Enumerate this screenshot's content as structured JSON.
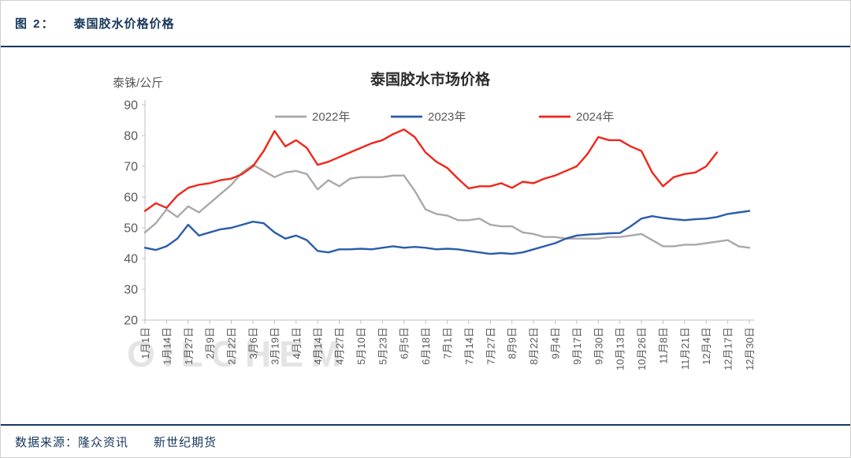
{
  "header": {
    "figure_label": "图 2：",
    "title": "泰国胶水价格价格"
  },
  "footer": {
    "text": "数据来源：隆众资讯　　新世纪期货"
  },
  "watermark": "OILCHEM",
  "theme": {
    "accent_navy": "#17375d",
    "axis_text": "#595959",
    "axis_line": "#bfbfbf",
    "watermark": "#e4e4e4"
  },
  "chart_data": {
    "type": "line",
    "title": "泰国胶水市场价格",
    "y_unit": "泰铢/公斤",
    "ylim": [
      20,
      90
    ],
    "y_ticks": [
      20,
      30,
      40,
      50,
      60,
      70,
      80,
      90
    ],
    "grid": false,
    "legend_position": "top",
    "x_tick_labels": [
      "1月1日",
      "1月14日",
      "1月27日",
      "2月9日",
      "2月22日",
      "3月6日",
      "3月19日",
      "4月1日",
      "4月14日",
      "4月27日",
      "5月10日",
      "5月23日",
      "6月5日",
      "6月18日",
      "7月1日",
      "7月14日",
      "7月27日",
      "8月9日",
      "8月22日",
      "9月4日",
      "9月17日",
      "9月30日",
      "10月13日",
      "10月26日",
      "11月8日",
      "11月21日",
      "12月4日",
      "12月17日",
      "12月30日"
    ],
    "series": [
      {
        "name": "2022年",
        "color": "#a9a9a9",
        "values": [
          48.5,
          51.5,
          56,
          53.5,
          57,
          55,
          58,
          61,
          64,
          68,
          70.5,
          68.5,
          66.5,
          68,
          68.5,
          67.5,
          62.5,
          65.5,
          63.5,
          66,
          66.5,
          66.5,
          66.5,
          67,
          67,
          62,
          56,
          54.5,
          54,
          52.5,
          52.5,
          53,
          51,
          50.5,
          50.5,
          48.5,
          48,
          47,
          47,
          46.5,
          46.5,
          46.5,
          46.5,
          47,
          47,
          47.5,
          48,
          46,
          44,
          44,
          44.5,
          44.5,
          45,
          45.5,
          46,
          44,
          43.5
        ]
      },
      {
        "name": "2023年",
        "color": "#2a5caa",
        "values": [
          43.5,
          42.8,
          44,
          46.5,
          51,
          47.5,
          48.5,
          49.5,
          50,
          51,
          52,
          51.5,
          48.5,
          46.5,
          47.5,
          46,
          42.5,
          42,
          43,
          43,
          43.2,
          43,
          43.5,
          44,
          43.5,
          43.8,
          43.5,
          43,
          43.2,
          43,
          42.5,
          42,
          41.5,
          41.8,
          41.5,
          42,
          43,
          44,
          45,
          46.5,
          47.5,
          47.8,
          48,
          48.2,
          48.3,
          50.5,
          53,
          53.8,
          53.2,
          52.8,
          52.5,
          52.8,
          53,
          53.5,
          54.5,
          55,
          55.5
        ]
      },
      {
        "name": "2024年",
        "color": "#f0261b",
        "values": [
          55.5,
          58,
          56.5,
          60.5,
          63,
          64,
          64.5,
          65.5,
          66,
          67.5,
          70,
          75,
          81.5,
          76.5,
          78.5,
          76,
          70.5,
          71.5,
          73,
          74.5,
          76,
          77.5,
          78.5,
          80.5,
          82,
          79.5,
          74.5,
          71.5,
          69.5,
          66,
          62.8,
          63.5,
          63.5,
          64.5,
          63,
          65,
          64.5,
          66,
          67,
          68.5,
          70,
          74,
          79.5,
          78.5,
          78.5,
          76.5,
          75,
          68,
          63.5,
          66.5,
          67.5,
          68,
          70,
          74.5,
          null,
          null,
          null
        ]
      }
    ]
  }
}
